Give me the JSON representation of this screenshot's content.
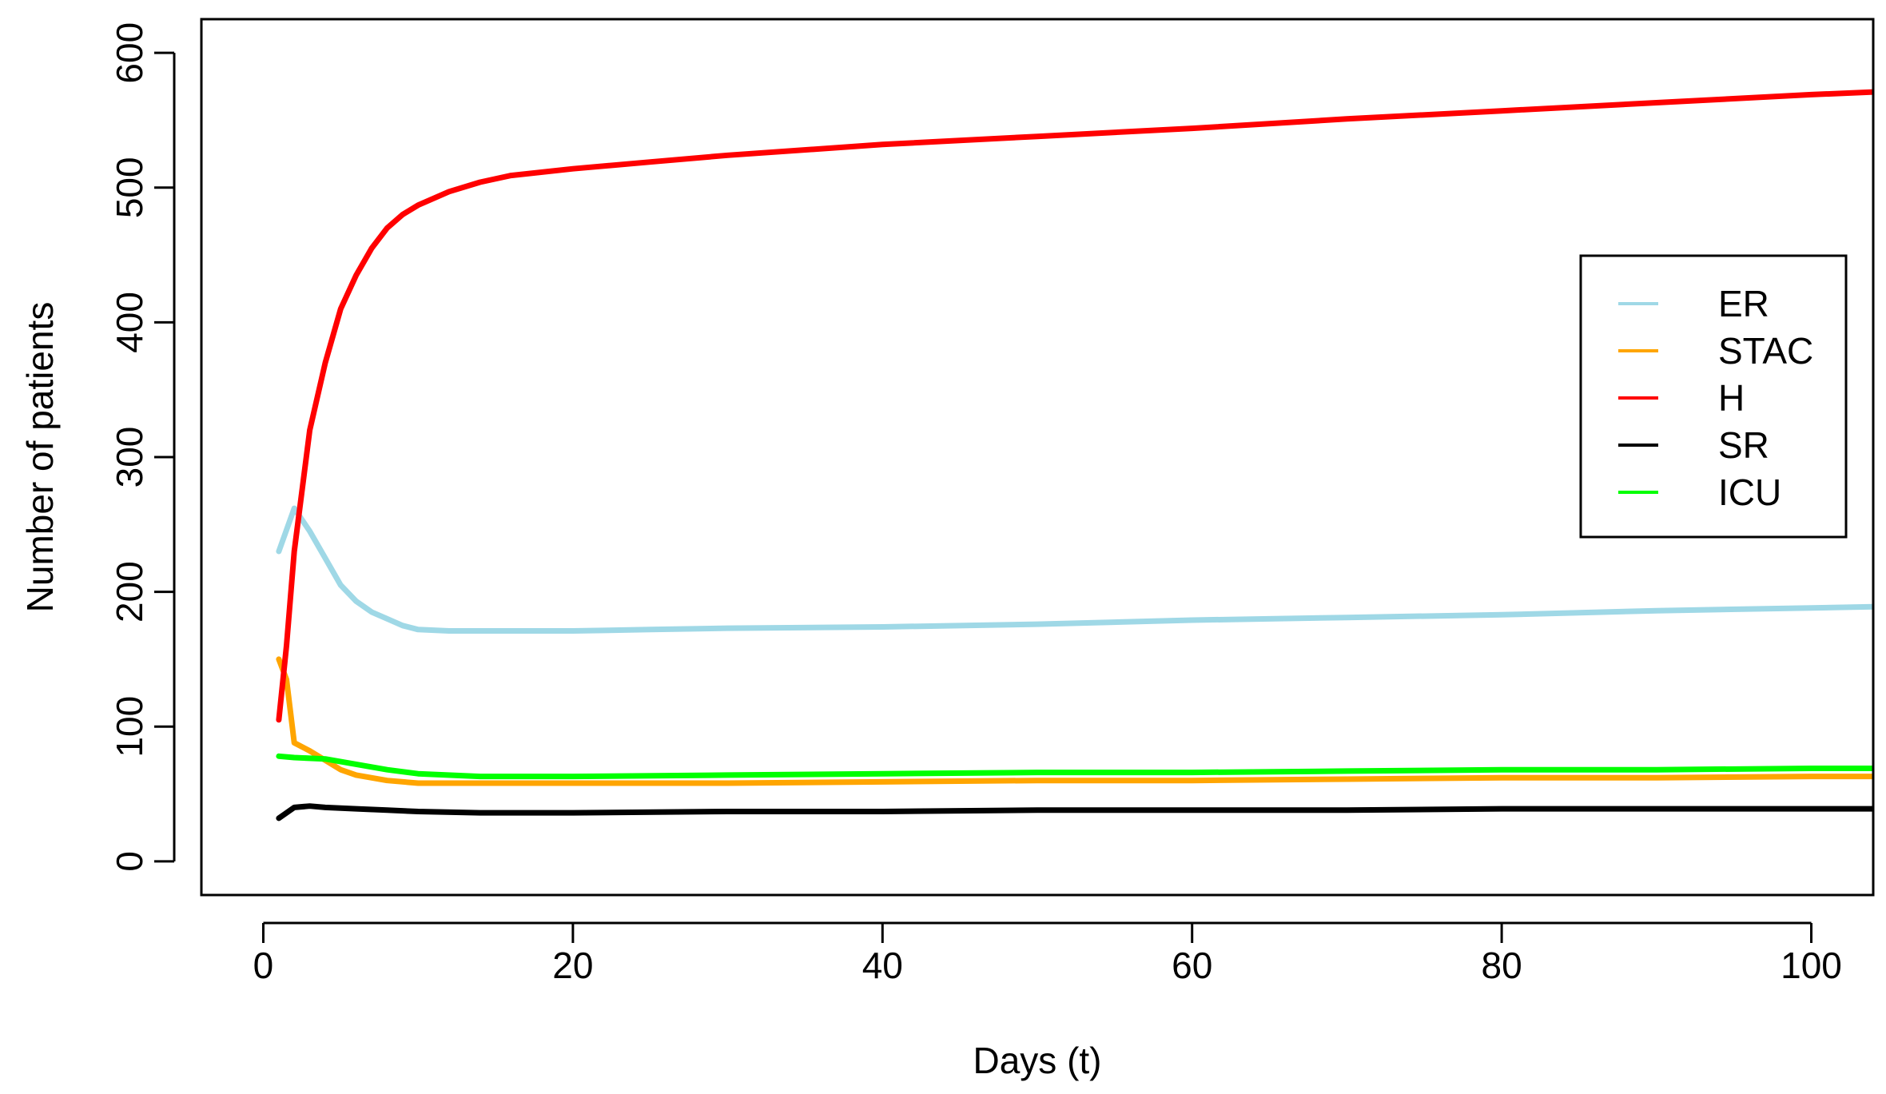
{
  "chart_data": {
    "type": "line",
    "title": "",
    "xlabel": "Days (t)",
    "ylabel": "Number of patients",
    "xlim": [
      -4,
      104
    ],
    "ylim": [
      -25,
      625
    ],
    "x_ticks": [
      0,
      20,
      40,
      60,
      80,
      100
    ],
    "y_ticks": [
      0,
      100,
      200,
      300,
      400,
      500,
      600
    ],
    "x_tick_labels": [
      "0",
      "20",
      "40",
      "60",
      "80",
      "100"
    ],
    "y_tick_labels": [
      "0",
      "100",
      "200",
      "300",
      "400",
      "500",
      "600"
    ],
    "grid": false,
    "legend_position": "right",
    "series": [
      {
        "name": "ER",
        "color": "#9fd8e6",
        "points": [
          [
            1,
            230
          ],
          [
            2,
            262
          ],
          [
            3,
            245
          ],
          [
            4,
            225
          ],
          [
            5,
            205
          ],
          [
            6,
            193
          ],
          [
            7,
            185
          ],
          [
            8,
            180
          ],
          [
            9,
            175
          ],
          [
            10,
            172
          ],
          [
            12,
            171
          ],
          [
            15,
            171
          ],
          [
            20,
            171
          ],
          [
            25,
            172
          ],
          [
            30,
            173
          ],
          [
            40,
            174
          ],
          [
            50,
            176
          ],
          [
            60,
            179
          ],
          [
            70,
            181
          ],
          [
            80,
            183
          ],
          [
            90,
            186
          ],
          [
            100,
            188
          ],
          [
            104,
            189
          ]
        ]
      },
      {
        "name": "STAC",
        "color": "#ffa500",
        "points": [
          [
            1,
            150
          ],
          [
            1.5,
            135
          ],
          [
            2,
            88
          ],
          [
            3,
            82
          ],
          [
            4,
            75
          ],
          [
            5,
            68
          ],
          [
            6,
            64
          ],
          [
            7,
            62
          ],
          [
            8,
            60
          ],
          [
            10,
            58
          ],
          [
            15,
            58
          ],
          [
            20,
            58
          ],
          [
            30,
            58
          ],
          [
            40,
            59
          ],
          [
            50,
            60
          ],
          [
            60,
            60
          ],
          [
            70,
            61
          ],
          [
            80,
            62
          ],
          [
            90,
            62
          ],
          [
            100,
            63
          ],
          [
            104,
            63
          ]
        ]
      },
      {
        "name": "H",
        "color": "#ff0000",
        "points": [
          [
            1,
            105
          ],
          [
            1.5,
            160
          ],
          [
            2,
            230
          ],
          [
            3,
            320
          ],
          [
            4,
            370
          ],
          [
            5,
            410
          ],
          [
            6,
            435
          ],
          [
            7,
            455
          ],
          [
            8,
            470
          ],
          [
            9,
            480
          ],
          [
            10,
            487
          ],
          [
            12,
            497
          ],
          [
            14,
            504
          ],
          [
            16,
            509
          ],
          [
            20,
            514
          ],
          [
            25,
            519
          ],
          [
            30,
            524
          ],
          [
            40,
            532
          ],
          [
            50,
            538
          ],
          [
            60,
            544
          ],
          [
            70,
            551
          ],
          [
            80,
            557
          ],
          [
            90,
            563
          ],
          [
            100,
            569
          ],
          [
            104,
            571
          ]
        ]
      },
      {
        "name": "SR",
        "color": "#000000",
        "points": [
          [
            1,
            32
          ],
          [
            2,
            40
          ],
          [
            3,
            41
          ],
          [
            4,
            40
          ],
          [
            6,
            39
          ],
          [
            8,
            38
          ],
          [
            10,
            37
          ],
          [
            14,
            36
          ],
          [
            20,
            36
          ],
          [
            30,
            37
          ],
          [
            40,
            37
          ],
          [
            50,
            38
          ],
          [
            60,
            38
          ],
          [
            70,
            38
          ],
          [
            80,
            39
          ],
          [
            90,
            39
          ],
          [
            100,
            39
          ],
          [
            104,
            39
          ]
        ]
      },
      {
        "name": "ICU",
        "color": "#00ff00",
        "points": [
          [
            1,
            78
          ],
          [
            2,
            77
          ],
          [
            4,
            76
          ],
          [
            6,
            72
          ],
          [
            8,
            68
          ],
          [
            10,
            65
          ],
          [
            14,
            63
          ],
          [
            20,
            63
          ],
          [
            30,
            64
          ],
          [
            40,
            65
          ],
          [
            50,
            66
          ],
          [
            60,
            66
          ],
          [
            70,
            67
          ],
          [
            80,
            68
          ],
          [
            90,
            68
          ],
          [
            100,
            69
          ],
          [
            104,
            69
          ]
        ]
      }
    ]
  }
}
